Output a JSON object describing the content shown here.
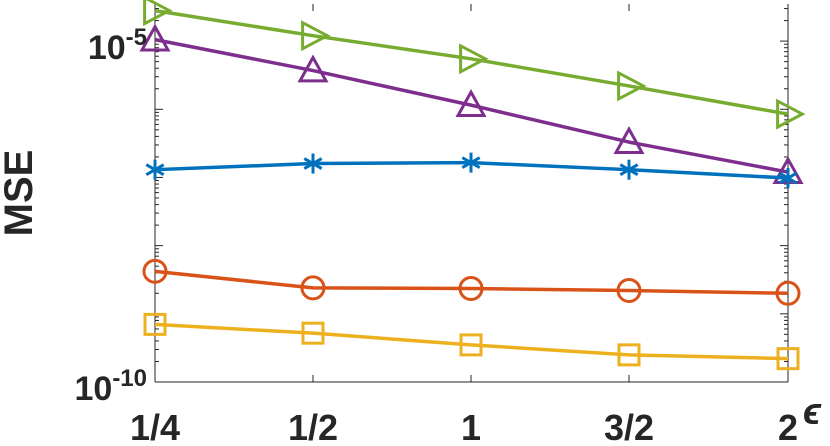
{
  "chart_data": {
    "type": "line",
    "xlabel": "ϵ",
    "ylabel": "MSE",
    "yscale": "log",
    "ylim": [
      1e-10,
      3.5e-05
    ],
    "categories": [
      "1/4",
      "1/2",
      "1",
      "3/2",
      "2"
    ],
    "x": [
      0.25,
      0.5,
      1,
      1.5,
      2
    ],
    "y_ticks": [
      {
        "base": "10",
        "exp": "-10",
        "value": 1e-10
      },
      {
        "base": "10",
        "exp": "-5",
        "value": 1e-05
      }
    ],
    "grid": false,
    "series": [
      {
        "color": "#77ac30",
        "marker": "triangle-right",
        "values": [
          2.8e-05,
          1.2e-05,
          5.5e-06,
          2.2e-06,
          8.5e-07
        ]
      },
      {
        "color": "#7e2f8e",
        "marker": "triangle-up",
        "values": [
          1.05e-05,
          3.7e-06,
          1.15e-06,
          3.3e-07,
          1.2e-07
        ]
      },
      {
        "color": "#0072bd",
        "marker": "asterisk",
        "values": [
          1.3e-07,
          1.6e-07,
          1.65e-07,
          1.3e-07,
          9.8e-08
        ]
      },
      {
        "color": "#d95319",
        "marker": "circle",
        "values": [
          4.2e-09,
          2.4e-09,
          2.35e-09,
          2.2e-09,
          2e-09
        ]
      },
      {
        "color": "#edb120",
        "marker": "square",
        "values": [
          7e-10,
          5.2e-10,
          3.5e-10,
          2.5e-10,
          2.2e-10
        ]
      }
    ]
  }
}
